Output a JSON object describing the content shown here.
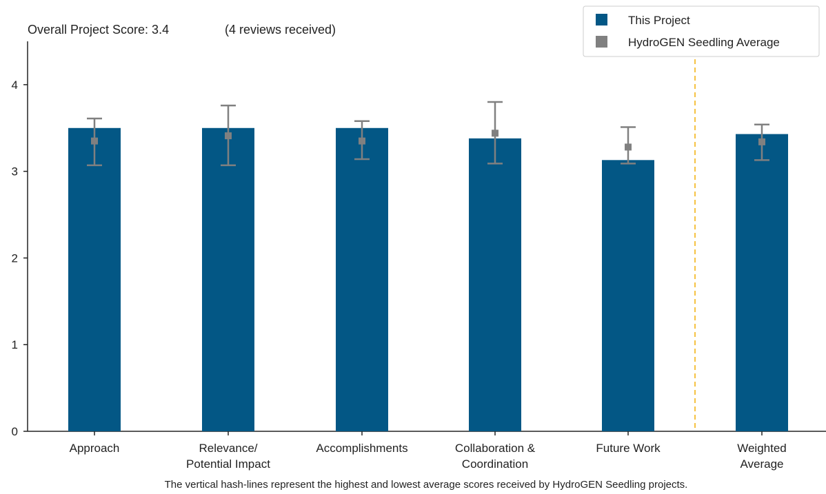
{
  "header": {
    "score_text": "Overall Project Score: 3.4",
    "reviews_text": "(4 reviews received)"
  },
  "footnote": "The vertical hash-lines represent the highest and lowest average scores received by HydroGEN Seedling projects.",
  "colors": {
    "project": "#035785",
    "average": "#808080",
    "divider": "#f5c242",
    "axis": "#222222"
  },
  "chart_data": {
    "type": "bar",
    "ylim": [
      0,
      4.5
    ],
    "yticks": [
      0,
      1,
      2,
      3,
      4
    ],
    "categories": [
      [
        "Approach"
      ],
      [
        "Relevance/",
        "Potential Impact"
      ],
      [
        "Accomplishments"
      ],
      [
        "Collaboration &",
        "Coordination"
      ],
      [
        "Future Work"
      ],
      [
        "Weighted",
        "Average"
      ]
    ],
    "series": [
      {
        "name": "This Project",
        "values": [
          3.5,
          3.5,
          3.5,
          3.38,
          3.13,
          3.43
        ]
      },
      {
        "name": "HydroGEN Seedling Average",
        "values": [
          3.35,
          3.41,
          3.35,
          3.44,
          3.28,
          3.34
        ],
        "low": [
          3.07,
          3.07,
          3.14,
          3.09,
          3.09,
          3.13
        ],
        "high": [
          3.61,
          3.76,
          3.58,
          3.8,
          3.51,
          3.54
        ]
      }
    ],
    "divider_after_index": 4,
    "legend": {
      "position": "top-right",
      "items": [
        "This Project",
        "HydroGEN Seedling Average"
      ]
    }
  }
}
